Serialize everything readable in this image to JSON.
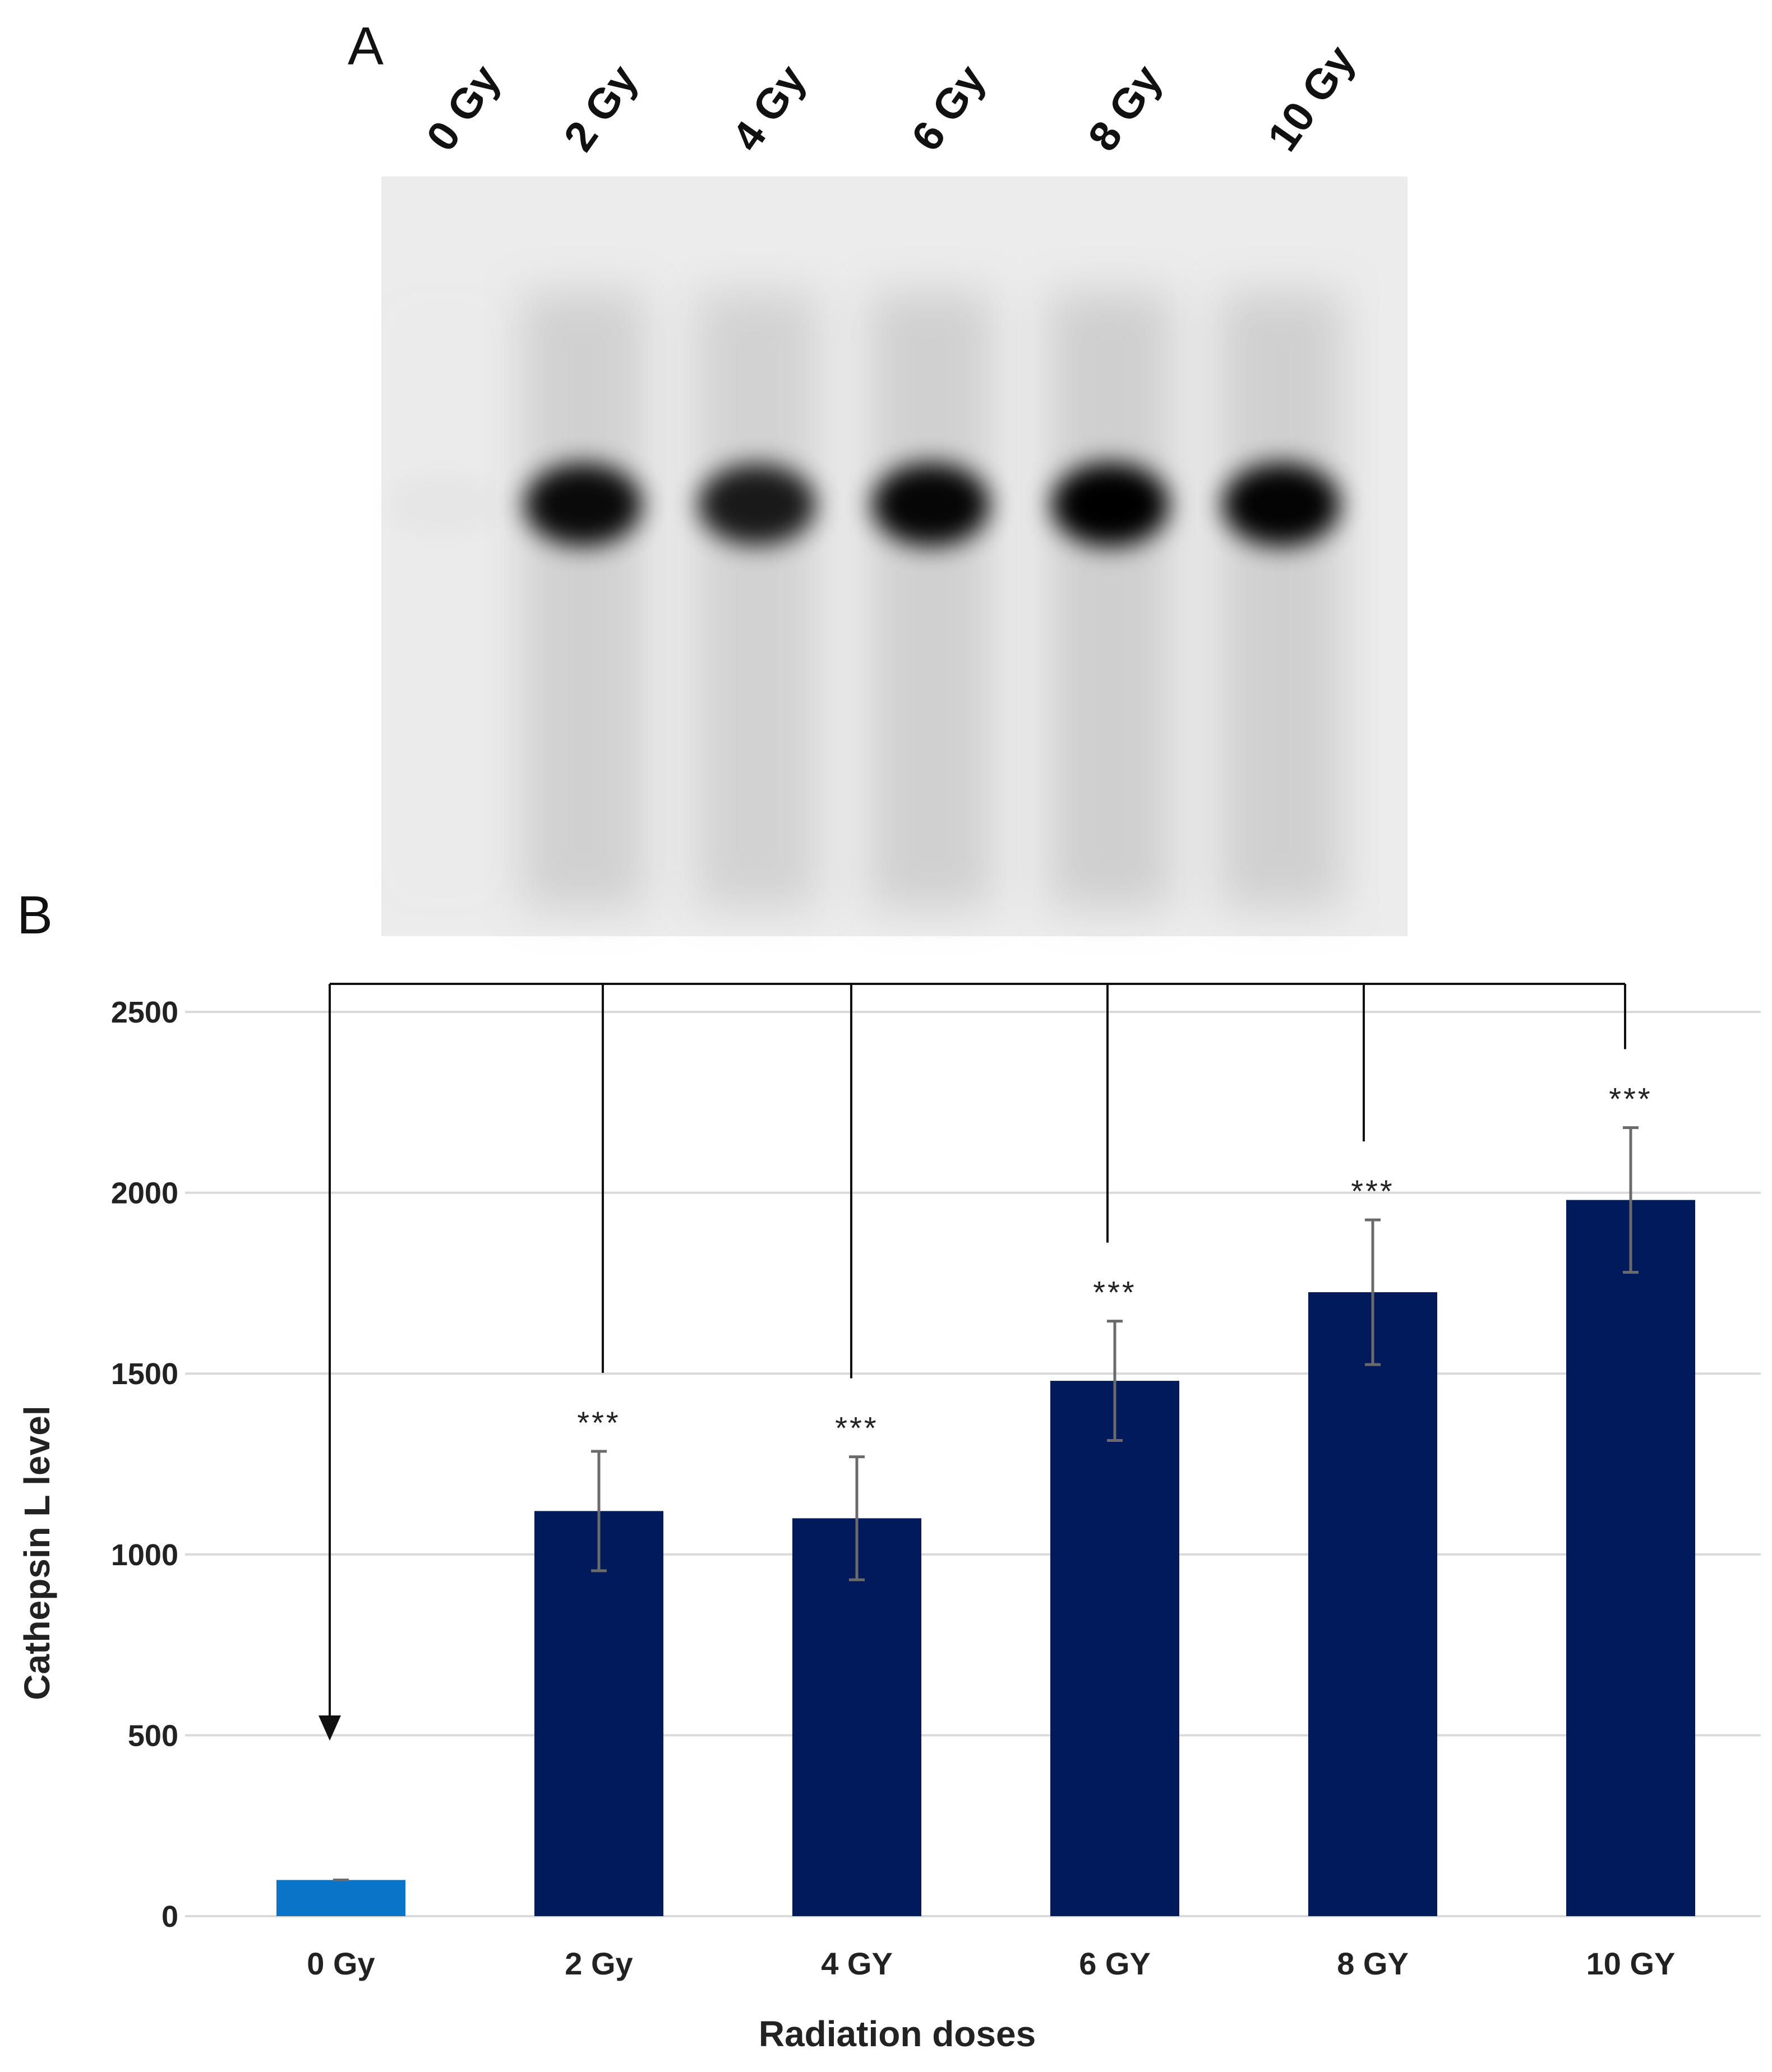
{
  "panels": {
    "a": "A",
    "b": "B"
  },
  "blot": {
    "lanes": [
      "0 Gy",
      "2 Gy",
      "4 Gy",
      "6 Gy",
      "8 Gy",
      "10 Gy"
    ],
    "band_intensity": [
      0.02,
      0.95,
      0.88,
      0.97,
      1.0,
      0.98
    ]
  },
  "colors": {
    "control": "#0a74c8",
    "treated": "#001a5c",
    "error": "#6b6b6b",
    "grid": "#d9d9d9"
  },
  "chart_data": {
    "type": "bar",
    "categories": [
      "0 Gy",
      "2 Gy",
      "4 GY",
      "6 GY",
      "8 GY",
      "10 GY"
    ],
    "values": [
      100,
      1120,
      1100,
      1480,
      1725,
      1980
    ],
    "errors": [
      0,
      165,
      170,
      165,
      200,
      200
    ],
    "significance": [
      "",
      "***",
      "***",
      "***",
      "***",
      "***"
    ],
    "xlabel": "Radiation doses",
    "ylabel": "Cathepsin L level",
    "ylim": [
      0,
      2500
    ],
    "yticks": [
      0,
      500,
      1000,
      1500,
      2000,
      2500
    ],
    "grid": true,
    "comparison_reference": "0 Gy"
  }
}
